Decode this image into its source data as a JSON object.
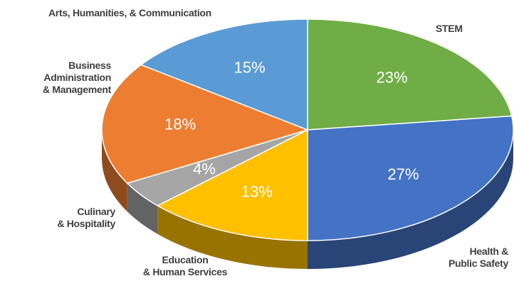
{
  "chart_data": {
    "type": "pie",
    "categories": [
      "STEM",
      "Health &\nPublic Safety",
      "Education\n& Human Services",
      "Culinary\n& Hospitality",
      "Business\nAdministration\n& Management",
      "Arts, Humanities, & Communication"
    ],
    "values": [
      23,
      27,
      13,
      4,
      18,
      15
    ],
    "value_labels": [
      "23%",
      "27%",
      "13%",
      "4%",
      "18%",
      "15%"
    ],
    "colors": [
      "#70ad47",
      "#4472c4",
      "#ffc000",
      "#a5a5a5",
      "#ed7d31",
      "#5b9bd5"
    ]
  }
}
